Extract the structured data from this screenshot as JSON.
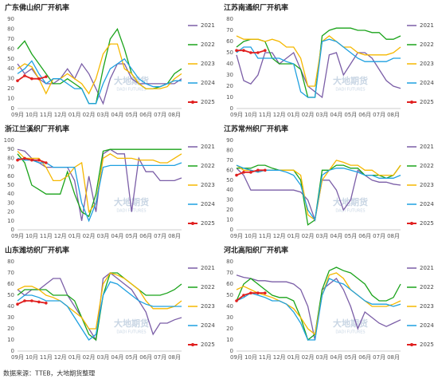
{
  "chart_data": [
    {
      "type": "line",
      "title": "广东佛山织厂开机率",
      "categories": [
        "09月",
        null,
        "10月",
        null,
        "11月",
        null,
        "12月",
        null,
        "01月",
        null,
        "02月",
        null,
        "03月",
        null,
        "04月",
        null,
        "05月",
        null,
        "06月",
        null,
        "07月",
        null,
        "08月",
        null
      ],
      "ylim": [
        0,
        90
      ],
      "yticks": [
        0,
        10,
        20,
        30,
        40,
        50,
        60,
        70,
        80,
        90
      ],
      "grid": false,
      "series": [
        {
          "name": "2021",
          "color": "#7b5ea7",
          "values": [
            45,
            35,
            40,
            30,
            25,
            25,
            30,
            40,
            30,
            45,
            35,
            20,
            5,
            30,
            45,
            45,
            30,
            25,
            25,
            25,
            25,
            25,
            25,
            30
          ]
        },
        {
          "name": "2022",
          "color": "#1aa31a",
          "values": [
            60,
            68,
            55,
            45,
            35,
            25,
            25,
            30,
            25,
            20,
            5,
            5,
            40,
            70,
            80,
            60,
            35,
            25,
            20,
            20,
            22,
            25,
            35,
            40
          ]
        },
        {
          "name": "2023",
          "color": "#f5b800",
          "values": [
            40,
            45,
            42,
            30,
            15,
            30,
            30,
            35,
            30,
            25,
            15,
            30,
            55,
            65,
            65,
            40,
            35,
            25,
            20,
            20,
            20,
            22,
            30,
            35
          ]
        },
        {
          "name": "2024",
          "color": "#1ea0e0",
          "values": [
            35,
            40,
            48,
            35,
            25,
            30,
            30,
            25,
            20,
            20,
            5,
            5,
            25,
            40,
            45,
            50,
            40,
            30,
            25,
            22,
            22,
            25,
            28,
            28
          ]
        },
        {
          "name": "2025",
          "color": "#e02020",
          "values": [
            28,
            33,
            30,
            30,
            32,
            null,
            null,
            null,
            null,
            null,
            null,
            null,
            null,
            null,
            null,
            null,
            null,
            null,
            null,
            null,
            null,
            null,
            null,
            null
          ]
        }
      ]
    },
    {
      "type": "line",
      "title": "江苏南通织厂开机率",
      "categories": [
        "09月",
        null,
        "10月",
        null,
        "11月",
        null,
        "12月",
        null,
        "01月",
        null,
        "02月",
        null,
        "03月",
        null,
        "04月",
        null,
        "05月",
        null,
        "06月",
        null,
        "07月",
        null,
        "08月",
        null
      ],
      "ylim": [
        0,
        80
      ],
      "yticks": [
        0,
        10,
        20,
        30,
        40,
        50,
        60,
        70,
        80
      ],
      "grid": false,
      "series": [
        {
          "name": "2021",
          "color": "#7b5ea7",
          "values": [
            48,
            25,
            22,
            30,
            50,
            50,
            40,
            45,
            50,
            35,
            20,
            15,
            10,
            48,
            50,
            30,
            40,
            50,
            50,
            45,
            35,
            25,
            20,
            18
          ]
        },
        {
          "name": "2022",
          "color": "#1aa31a",
          "values": [
            55,
            60,
            62,
            62,
            60,
            45,
            40,
            40,
            40,
            35,
            10,
            10,
            65,
            70,
            72,
            72,
            72,
            70,
            70,
            68,
            68,
            62,
            62,
            65
          ]
        },
        {
          "name": "2023",
          "color": "#f5b800",
          "values": [
            65,
            62,
            62,
            62,
            60,
            62,
            60,
            55,
            55,
            45,
            20,
            20,
            60,
            65,
            60,
            55,
            55,
            50,
            48,
            48,
            48,
            48,
            50,
            55
          ]
        },
        {
          "name": "2024",
          "color": "#1ea0e0",
          "values": [
            50,
            55,
            55,
            45,
            45,
            45,
            45,
            42,
            40,
            15,
            10,
            10,
            60,
            62,
            60,
            55,
            50,
            45,
            42,
            42,
            42,
            42,
            45,
            45
          ]
        },
        {
          "name": "2025",
          "color": "#e02020",
          "values": [
            52,
            52,
            50,
            50,
            52,
            null,
            null,
            null,
            null,
            null,
            null,
            null,
            null,
            null,
            null,
            null,
            null,
            null,
            null,
            null,
            null,
            null,
            null,
            null
          ]
        }
      ]
    },
    {
      "type": "line",
      "title": "浙江兰溪织厂开机率",
      "categories": [
        "09月",
        null,
        "10月",
        null,
        "11月",
        null,
        "12月",
        null,
        "01月",
        null,
        "02月",
        null,
        "03月",
        null,
        "04月",
        null,
        "05月",
        null,
        "06月",
        null,
        "07月",
        null,
        "08月",
        null
      ],
      "ylim": [
        0,
        100
      ],
      "yticks": [
        0,
        10,
        20,
        30,
        40,
        50,
        60,
        70,
        80,
        90,
        100
      ],
      "grid": false,
      "series": [
        {
          "name": "2021",
          "color": "#7b5ea7",
          "values": [
            90,
            88,
            80,
            75,
            70,
            70,
            70,
            70,
            55,
            10,
            60,
            20,
            85,
            90,
            85,
            85,
            20,
            80,
            65,
            65,
            55,
            55,
            55,
            58
          ]
        },
        {
          "name": "2022",
          "color": "#1aa31a",
          "values": [
            85,
            75,
            50,
            45,
            40,
            40,
            40,
            65,
            40,
            20,
            15,
            40,
            88,
            90,
            90,
            90,
            90,
            90,
            90,
            90,
            90,
            90,
            90,
            90
          ]
        },
        {
          "name": "2023",
          "color": "#f5b800",
          "values": [
            88,
            80,
            80,
            80,
            70,
            55,
            55,
            60,
            70,
            75,
            20,
            30,
            80,
            85,
            80,
            80,
            80,
            78,
            78,
            78,
            75,
            75,
            80,
            85
          ]
        },
        {
          "name": "2024",
          "color": "#1ea0e0",
          "values": [
            80,
            78,
            78,
            75,
            75,
            70,
            70,
            70,
            70,
            30,
            10,
            30,
            70,
            72,
            72,
            72,
            72,
            72,
            72,
            72,
            72,
            72,
            72,
            75
          ]
        },
        {
          "name": "2025",
          "color": "#e02020",
          "values": [
            78,
            80,
            78,
            78,
            75,
            null,
            null,
            null,
            null,
            null,
            null,
            null,
            null,
            null,
            null,
            null,
            null,
            null,
            null,
            null,
            null,
            null,
            null,
            null
          ]
        }
      ]
    },
    {
      "type": "line",
      "title": "江苏常州织厂开机率",
      "categories": [
        "09月",
        null,
        "10月",
        null,
        "11月",
        null,
        "12月",
        null,
        "01月",
        null,
        "02月",
        null,
        "03月",
        null,
        "04月",
        null,
        "05月",
        null,
        "06月",
        null,
        "07月",
        null,
        "08月",
        null
      ],
      "ylim": [
        0,
        90
      ],
      "yticks": [
        0,
        10,
        20,
        30,
        40,
        50,
        60,
        70,
        80,
        90
      ],
      "grid": false,
      "series": [
        {
          "name": "2021",
          "color": "#7b5ea7",
          "values": [
            62,
            55,
            40,
            40,
            40,
            40,
            40,
            40,
            40,
            38,
            30,
            10,
            50,
            50,
            40,
            20,
            30,
            60,
            55,
            50,
            48,
            48,
            46,
            45
          ]
        },
        {
          "name": "2022",
          "color": "#1aa31a",
          "values": [
            62,
            62,
            62,
            65,
            65,
            62,
            60,
            60,
            60,
            50,
            5,
            10,
            60,
            60,
            65,
            65,
            62,
            62,
            55,
            55,
            55,
            52,
            55,
            65
          ]
        },
        {
          "name": "2023",
          "color": "#f5b800",
          "values": [
            65,
            60,
            60,
            58,
            60,
            60,
            60,
            60,
            60,
            55,
            15,
            10,
            50,
            60,
            70,
            68,
            65,
            65,
            60,
            60,
            55,
            55,
            55,
            65
          ]
        },
        {
          "name": "2024",
          "color": "#1ea0e0",
          "values": [
            65,
            62,
            60,
            58,
            60,
            60,
            60,
            58,
            55,
            45,
            20,
            10,
            55,
            60,
            62,
            62,
            60,
            58,
            55,
            55,
            52,
            52,
            52,
            55
          ]
        },
        {
          "name": "2025",
          "color": "#e02020",
          "values": [
            55,
            58,
            58,
            60,
            60,
            null,
            null,
            null,
            null,
            null,
            null,
            null,
            null,
            null,
            null,
            null,
            null,
            null,
            null,
            null,
            null,
            null,
            null,
            null
          ]
        }
      ]
    },
    {
      "type": "line",
      "title": "山东潍坊织厂开机率",
      "categories": [
        "09月",
        null,
        "10月",
        null,
        "11月",
        null,
        "12月",
        null,
        "01月",
        null,
        "02月",
        null,
        "03月",
        null,
        "04月",
        null,
        "05月",
        null,
        "06月",
        null,
        "07月",
        null,
        "08月",
        null
      ],
      "ylim": [
        0,
        80
      ],
      "yticks": [
        0,
        10,
        20,
        30,
        40,
        50,
        60,
        70,
        80
      ],
      "grid": false,
      "series": [
        {
          "name": "2021",
          "color": "#7b5ea7",
          "values": [
            55,
            50,
            55,
            55,
            60,
            65,
            65,
            50,
            40,
            30,
            20,
            10,
            65,
            70,
            65,
            60,
            55,
            45,
            35,
            15,
            25,
            25,
            28,
            30
          ]
        },
        {
          "name": "2022",
          "color": "#1aa31a",
          "values": [
            50,
            55,
            55,
            55,
            55,
            50,
            50,
            50,
            45,
            30,
            15,
            10,
            50,
            70,
            70,
            65,
            60,
            55,
            50,
            50,
            50,
            52,
            55,
            60
          ]
        },
        {
          "name": "2023",
          "color": "#f5b800",
          "values": [
            55,
            58,
            58,
            55,
            50,
            48,
            45,
            40,
            35,
            30,
            20,
            20,
            60,
            70,
            68,
            65,
            60,
            55,
            45,
            38,
            38,
            38,
            40,
            45
          ]
        },
        {
          "name": "2024",
          "color": "#1ea0e0",
          "values": [
            45,
            50,
            50,
            48,
            45,
            45,
            45,
            40,
            30,
            20,
            10,
            15,
            50,
            62,
            60,
            55,
            50,
            45,
            42,
            40,
            40,
            40,
            40,
            40
          ]
        },
        {
          "name": "2025",
          "color": "#e02020",
          "values": [
            42,
            45,
            45,
            44,
            43,
            null,
            null,
            null,
            null,
            null,
            null,
            null,
            null,
            null,
            null,
            null,
            null,
            null,
            null,
            null,
            null,
            null,
            null,
            null
          ]
        }
      ]
    },
    {
      "type": "line",
      "title": "河北高阳织厂开机率",
      "categories": [
        "09月",
        null,
        "10月",
        null,
        "11月",
        null,
        "12月",
        null,
        "01月",
        null,
        "02月",
        null,
        "03月",
        null,
        "04月",
        null,
        "05月",
        null,
        "06月",
        null,
        "07月",
        null,
        "08月",
        null
      ],
      "ylim": [
        0,
        80
      ],
      "yticks": [
        0,
        10,
        20,
        30,
        40,
        50,
        60,
        70,
        80
      ],
      "grid": false,
      "series": [
        {
          "name": "2021",
          "color": "#7b5ea7",
          "values": [
            68,
            66,
            65,
            63,
            63,
            62,
            62,
            62,
            60,
            55,
            40,
            10,
            55,
            60,
            65,
            55,
            40,
            20,
            35,
            30,
            25,
            22,
            25,
            28
          ]
        },
        {
          "name": "2022",
          "color": "#1aa31a",
          "values": [
            45,
            60,
            65,
            60,
            55,
            50,
            48,
            48,
            45,
            30,
            10,
            15,
            55,
            72,
            75,
            72,
            70,
            65,
            60,
            50,
            45,
            45,
            48,
            60
          ]
        },
        {
          "name": "2023",
          "color": "#f5b800",
          "values": [
            55,
            58,
            55,
            52,
            50,
            48,
            45,
            42,
            38,
            30,
            20,
            15,
            50,
            68,
            70,
            65,
            55,
            50,
            45,
            40,
            40,
            40,
            42,
            45
          ]
        },
        {
          "name": "2024",
          "color": "#1ea0e0",
          "values": [
            45,
            48,
            52,
            50,
            48,
            45,
            45,
            42,
            35,
            25,
            10,
            10,
            50,
            65,
            62,
            60,
            55,
            50,
            45,
            42,
            42,
            42,
            40,
            42
          ]
        },
        {
          "name": "2025",
          "color": "#e02020",
          "values": [
            45,
            50,
            52,
            52,
            52,
            null,
            null,
            null,
            null,
            null,
            null,
            null,
            null,
            null,
            null,
            null,
            null,
            null,
            null,
            null,
            null,
            null,
            null,
            null
          ]
        }
      ]
    }
  ],
  "watermark": "大地期货",
  "watermark_en": "DADI FUTURES",
  "source": "数据来源：TTEB，大地期货整理"
}
